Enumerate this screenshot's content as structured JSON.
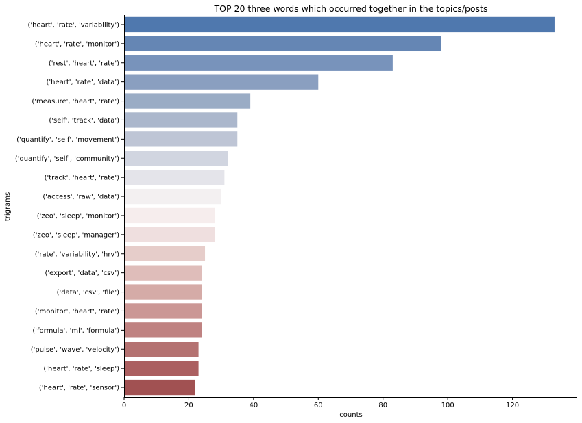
{
  "chart_data": {
    "type": "bar",
    "orientation": "horizontal",
    "title": "TOP 20 three words which occurred together in the topics/posts",
    "xlabel": "counts",
    "ylabel": "trigrams",
    "xlim": [
      0,
      140
    ],
    "xticks": [
      0,
      20,
      40,
      60,
      80,
      100,
      120
    ],
    "grid": false,
    "categories": [
      "('heart', 'rate', 'variability')",
      "('heart', 'rate', 'monitor')",
      "('rest', 'heart', 'rate')",
      "('heart', 'rate', 'data')",
      "('measure', 'heart', 'rate')",
      "('self', 'track', 'data')",
      "('quantify', 'self', 'movement')",
      "('quantify', 'self', 'community')",
      "('track', 'heart', 'rate')",
      "('access', 'raw', 'data')",
      "('zeo', 'sleep', 'monitor')",
      "('zeo', 'sleep', 'manager')",
      "('rate', 'variability', 'hrv')",
      "('export', 'data', 'csv')",
      "('data', 'csv', 'file')",
      "('monitor', 'heart', 'rate')",
      "('formula', 'ml', 'formula')",
      "('pulse', 'wave', 'velocity')",
      "('heart', 'rate', 'sleep')",
      "('heart', 'rate', 'sensor')"
    ],
    "values": [
      133,
      98,
      83,
      60,
      39,
      35,
      35,
      32,
      31,
      30,
      28,
      28,
      25,
      24,
      24,
      24,
      24,
      23,
      23,
      22
    ],
    "colors": [
      "#4f78ae",
      "#6586b4",
      "#7893bb",
      "#8a9fc0",
      "#9aacc5",
      "#abb7cc",
      "#bec5d5",
      "#d1d5e0",
      "#e4e4ea",
      "#f3f0f1",
      "#f6eded",
      "#efdfdf",
      "#e6cdca",
      "#dfbdba",
      "#d5aba7",
      "#cb9795",
      "#bf8281",
      "#b47271",
      "#ab5f60",
      "#a15152"
    ]
  }
}
